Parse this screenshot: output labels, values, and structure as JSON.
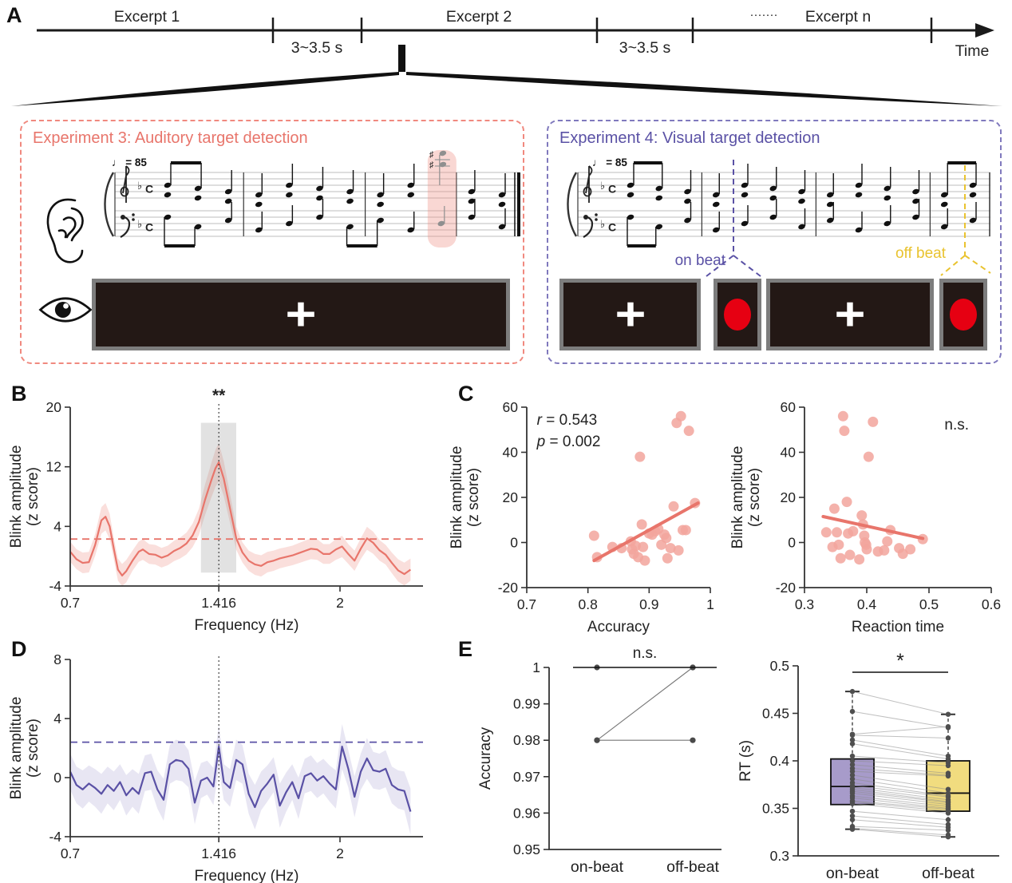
{
  "panels": {
    "a": "A",
    "b": "B",
    "c": "C",
    "d": "D",
    "e": "E"
  },
  "panelA": {
    "timeline": {
      "excerpt1": "Excerpt 1",
      "excerpt2": "Excerpt 2",
      "excerpt_n": "Excerpt n",
      "gap_label1": "3~3.5 s",
      "gap_label2": "3~3.5 s",
      "dots": "·······",
      "time_label": "Time"
    },
    "experiment3": {
      "title": "Experiment 3: Auditory target detection",
      "accent_color": "#e8756b",
      "tempo": "♩ = 85",
      "fixation_cross": "+",
      "target_highlight_color": "#f3c9c5"
    },
    "experiment4": {
      "title": "Experiment 4: Visual target detection",
      "accent_color": "#5a51a5",
      "tempo": "♩ = 85",
      "fixation_cross": "+",
      "on_beat_label": "on beat",
      "off_beat_label": "off beat",
      "on_beat_color": "#5a51a5",
      "off_beat_color": "#e9c32f",
      "target_color": "#e60012"
    }
  },
  "chart_data": [
    {
      "panel": "B",
      "type": "line",
      "xlabel": "Frequency (Hz)",
      "ylabel": [
        "Blink amplitude",
        "(z score)"
      ],
      "xlim": [
        0.7,
        2.4
      ],
      "ylim": [
        -4,
        20
      ],
      "xticks": [
        [
          0.7,
          "0.7"
        ],
        [
          1.416,
          "1.416"
        ],
        [
          2,
          "2"
        ]
      ],
      "yticks": [
        [
          -4,
          "-4"
        ],
        [
          4,
          "4"
        ],
        [
          12,
          "12"
        ],
        [
          20,
          "20"
        ]
      ],
      "line_color": "#e8756b",
      "band_color": "rgba(238,140,130,0.28)",
      "band": [
        1.3,
        0.1
      ],
      "threshold_dashed_y": 2.3,
      "highlight_band_x": [
        1.33,
        1.5
      ],
      "vline_x": 1.416,
      "significance": "**",
      "points": [
        [
          0.7,
          0.6
        ],
        [
          0.73,
          -0.4
        ],
        [
          0.76,
          -0.9
        ],
        [
          0.79,
          -0.8
        ],
        [
          0.82,
          1.5
        ],
        [
          0.85,
          4.8
        ],
        [
          0.87,
          5.3
        ],
        [
          0.89,
          4.0
        ],
        [
          0.91,
          1.0
        ],
        [
          0.93,
          -1.8
        ],
        [
          0.95,
          -2.6
        ],
        [
          0.97,
          -2.0
        ],
        [
          1.0,
          -0.6
        ],
        [
          1.03,
          0.6
        ],
        [
          1.05,
          0.9
        ],
        [
          1.08,
          0.3
        ],
        [
          1.11,
          0.2
        ],
        [
          1.14,
          -0.2
        ],
        [
          1.17,
          0.1
        ],
        [
          1.2,
          0.7
        ],
        [
          1.23,
          1.1
        ],
        [
          1.26,
          1.7
        ],
        [
          1.29,
          2.8
        ],
        [
          1.32,
          4.6
        ],
        [
          1.35,
          7.6
        ],
        [
          1.38,
          10.2
        ],
        [
          1.4,
          11.8
        ],
        [
          1.416,
          12.6
        ],
        [
          1.44,
          10.4
        ],
        [
          1.47,
          6.4
        ],
        [
          1.5,
          2.4
        ],
        [
          1.53,
          0.5
        ],
        [
          1.56,
          -0.6
        ],
        [
          1.59,
          -1.1
        ],
        [
          1.62,
          -1.3
        ],
        [
          1.65,
          -0.8
        ],
        [
          1.68,
          -0.6
        ],
        [
          1.71,
          -0.3
        ],
        [
          1.74,
          -0.1
        ],
        [
          1.77,
          0.1
        ],
        [
          1.8,
          0.4
        ],
        [
          1.83,
          0.7
        ],
        [
          1.86,
          1.0
        ],
        [
          1.89,
          0.9
        ],
        [
          1.92,
          0.3
        ],
        [
          1.95,
          0.3
        ],
        [
          1.98,
          0.9
        ],
        [
          2.01,
          1.3
        ],
        [
          2.04,
          0.3
        ],
        [
          2.07,
          -0.6
        ],
        [
          2.1,
          1.0
        ],
        [
          2.13,
          2.4
        ],
        [
          2.16,
          1.8
        ],
        [
          2.19,
          0.8
        ],
        [
          2.22,
          0.2
        ],
        [
          2.25,
          -0.9
        ],
        [
          2.28,
          -1.9
        ],
        [
          2.31,
          -2.4
        ],
        [
          2.34,
          -1.8
        ]
      ]
    },
    {
      "panel": "C-left",
      "type": "scatter",
      "xlabel": "Accuracy",
      "ylabel": [
        "Blink amplitude",
        "(z score)"
      ],
      "xlim": [
        0.7,
        1
      ],
      "ylim": [
        -20,
        60
      ],
      "xticks": [
        [
          0.7,
          "0.7"
        ],
        [
          0.8,
          "0.8"
        ],
        [
          0.9,
          "0.9"
        ],
        [
          1,
          "1"
        ]
      ],
      "yticks": [
        [
          -20,
          "-20"
        ],
        [
          0,
          "0"
        ],
        [
          20,
          "20"
        ],
        [
          40,
          "40"
        ],
        [
          60,
          "60"
        ]
      ],
      "marker_color": "#f2a49c",
      "stats": [
        "r = 0.543",
        "p = 0.002"
      ],
      "fit_line": [
        [
          0.81,
          -8
        ],
        [
          0.98,
          17.5
        ]
      ],
      "points": [
        [
          0.81,
          3
        ],
        [
          0.815,
          -6.5
        ],
        [
          0.84,
          -2
        ],
        [
          0.855,
          -2.5
        ],
        [
          0.87,
          0.5
        ],
        [
          0.872,
          -3
        ],
        [
          0.875,
          -5
        ],
        [
          0.878,
          -1.5
        ],
        [
          0.882,
          -6.5
        ],
        [
          0.885,
          38
        ],
        [
          0.888,
          8
        ],
        [
          0.89,
          -2
        ],
        [
          0.893,
          -8
        ],
        [
          0.9,
          4
        ],
        [
          0.905,
          3.5
        ],
        [
          0.91,
          5
        ],
        [
          0.915,
          6
        ],
        [
          0.92,
          -1
        ],
        [
          0.925,
          3.5
        ],
        [
          0.928,
          2
        ],
        [
          0.93,
          -7
        ],
        [
          0.935,
          -2.5
        ],
        [
          0.94,
          16
        ],
        [
          0.945,
          53
        ],
        [
          0.948,
          -3.5
        ],
        [
          0.952,
          56
        ],
        [
          0.955,
          5.5
        ],
        [
          0.96,
          5.5
        ],
        [
          0.965,
          49.5
        ],
        [
          0.975,
          17.5
        ]
      ]
    },
    {
      "panel": "C-right",
      "type": "scatter",
      "xlabel": "Reaction time",
      "ylabel": [
        "Blink amplitude",
        "(z score)"
      ],
      "xlim": [
        0.3,
        0.6
      ],
      "ylim": [
        -20,
        60
      ],
      "xticks": [
        [
          0.3,
          "0.3"
        ],
        [
          0.4,
          "0.4"
        ],
        [
          0.5,
          "0.5"
        ],
        [
          0.6,
          "0.6"
        ]
      ],
      "yticks": [
        [
          -20,
          "-20"
        ],
        [
          0,
          "0"
        ],
        [
          20,
          "20"
        ],
        [
          40,
          "40"
        ],
        [
          60,
          "60"
        ]
      ],
      "marker_color": "#f2a49c",
      "ns_label": "n.s.",
      "fit_line": [
        [
          0.33,
          11.5
        ],
        [
          0.49,
          1.8
        ]
      ],
      "points": [
        [
          0.335,
          4.5
        ],
        [
          0.345,
          -2
        ],
        [
          0.348,
          15
        ],
        [
          0.352,
          4.5
        ],
        [
          0.355,
          -1
        ],
        [
          0.358,
          -7
        ],
        [
          0.362,
          56
        ],
        [
          0.364,
          49.5
        ],
        [
          0.368,
          18
        ],
        [
          0.37,
          4
        ],
        [
          0.373,
          -5.5
        ],
        [
          0.378,
          5
        ],
        [
          0.388,
          -7.5
        ],
        [
          0.392,
          12
        ],
        [
          0.394,
          8
        ],
        [
          0.396,
          3
        ],
        [
          0.397,
          0
        ],
        [
          0.399,
          -1
        ],
        [
          0.4,
          -3
        ],
        [
          0.403,
          38
        ],
        [
          0.41,
          53.5
        ],
        [
          0.418,
          -4
        ],
        [
          0.428,
          -3.5
        ],
        [
          0.433,
          0.5
        ],
        [
          0.438,
          5.5
        ],
        [
          0.452,
          -2.5
        ],
        [
          0.458,
          -5
        ],
        [
          0.47,
          -3
        ],
        [
          0.49,
          1.5
        ]
      ]
    },
    {
      "panel": "D",
      "type": "line",
      "xlabel": "Frequency (Hz)",
      "ylabel": [
        "Blink amplitude",
        "(z score)"
      ],
      "xlim": [
        0.7,
        2.4
      ],
      "ylim": [
        -4,
        8
      ],
      "xticks": [
        [
          0.7,
          "0.7"
        ],
        [
          1.416,
          "1.416"
        ],
        [
          2,
          "2"
        ]
      ],
      "yticks": [
        [
          -4,
          "-4"
        ],
        [
          0,
          "0"
        ],
        [
          4,
          "4"
        ],
        [
          8,
          "8"
        ]
      ],
      "line_color": "#5a51a5",
      "band_color": "rgba(110,100,180,0.16)",
      "band": [
        1.15,
        0.18
      ],
      "threshold_dashed_y": 2.4,
      "vline_x": 1.416,
      "points": [
        [
          0.7,
          0.4
        ],
        [
          0.73,
          -0.5
        ],
        [
          0.76,
          -0.8
        ],
        [
          0.79,
          -0.4
        ],
        [
          0.82,
          -0.7
        ],
        [
          0.85,
          -1.1
        ],
        [
          0.88,
          -0.5
        ],
        [
          0.91,
          -0.9
        ],
        [
          0.94,
          -0.3
        ],
        [
          0.97,
          -1.2
        ],
        [
          1.0,
          -0.7
        ],
        [
          1.03,
          -1.1
        ],
        [
          1.06,
          0.3
        ],
        [
          1.09,
          0.4
        ],
        [
          1.12,
          -0.8
        ],
        [
          1.15,
          -1.5
        ],
        [
          1.18,
          0.9
        ],
        [
          1.21,
          1.2
        ],
        [
          1.24,
          1.1
        ],
        [
          1.27,
          0.6
        ],
        [
          1.3,
          -1.7
        ],
        [
          1.33,
          -0.2
        ],
        [
          1.36,
          0.0
        ],
        [
          1.39,
          -0.6
        ],
        [
          1.416,
          2.1
        ],
        [
          1.44,
          -0.3
        ],
        [
          1.47,
          -0.7
        ],
        [
          1.5,
          1.2
        ],
        [
          1.53,
          0.9
        ],
        [
          1.56,
          -1.1
        ],
        [
          1.59,
          -2.0
        ],
        [
          1.62,
          -0.9
        ],
        [
          1.65,
          -0.4
        ],
        [
          1.68,
          0.2
        ],
        [
          1.71,
          -1.9
        ],
        [
          1.74,
          -1.0
        ],
        [
          1.77,
          -0.3
        ],
        [
          1.8,
          -1.4
        ],
        [
          1.83,
          0.1
        ],
        [
          1.86,
          0.3
        ],
        [
          1.89,
          -0.2
        ],
        [
          1.92,
          0.1
        ],
        [
          1.95,
          -0.4
        ],
        [
          1.98,
          -0.8
        ],
        [
          2.01,
          2.1
        ],
        [
          2.04,
          0.6
        ],
        [
          2.07,
          -1.3
        ],
        [
          2.1,
          0.4
        ],
        [
          2.13,
          1.3
        ],
        [
          2.16,
          0.5
        ],
        [
          2.19,
          0.4
        ],
        [
          2.22,
          0.6
        ],
        [
          2.25,
          -0.5
        ],
        [
          2.28,
          -0.8
        ],
        [
          2.31,
          -0.9
        ],
        [
          2.34,
          -2.3
        ]
      ]
    },
    {
      "panel": "E-left",
      "type": "paired-line",
      "ylabel": "Accuracy",
      "categories": [
        "on-beat",
        "off-beat"
      ],
      "ylim": [
        0.95,
        1
      ],
      "yticks": [
        [
          0.95,
          "0.95"
        ],
        [
          0.96,
          "0.96"
        ],
        [
          0.97,
          "0.97"
        ],
        [
          0.98,
          "0.98"
        ],
        [
          0.99,
          "0.99"
        ],
        [
          1,
          "1"
        ]
      ],
      "significance": "n.s.",
      "pairs": [
        [
          1,
          1
        ],
        [
          0.98,
          1
        ],
        [
          0.98,
          0.98
        ]
      ]
    },
    {
      "panel": "E-right",
      "type": "boxplot",
      "ylabel": "RT (s)",
      "categories": [
        "on-beat",
        "off-beat"
      ],
      "ylim": [
        0.3,
        0.5
      ],
      "yticks": [
        [
          0.3,
          "0.3"
        ],
        [
          0.35,
          "0.35"
        ],
        [
          0.4,
          "0.4"
        ],
        [
          0.45,
          "0.45"
        ],
        [
          0.5,
          "0.5"
        ]
      ],
      "significance": "*",
      "boxes": [
        {
          "label": "on-beat",
          "color": "#a79bca",
          "whisker_low": 0.328,
          "q1": 0.354,
          "median": 0.373,
          "q3": 0.402,
          "whisker_high": 0.473
        },
        {
          "label": "off-beat",
          "color": "#f1dc7f",
          "whisker_low": 0.32,
          "q1": 0.347,
          "median": 0.366,
          "q3": 0.4,
          "whisker_high": 0.449
        }
      ],
      "pairs": [
        [
          0.473,
          0.449
        ],
        [
          0.452,
          0.435
        ],
        [
          0.428,
          0.436
        ],
        [
          0.427,
          0.424
        ],
        [
          0.422,
          0.405
        ],
        [
          0.418,
          0.402
        ],
        [
          0.405,
          0.398
        ],
        [
          0.4,
          0.395
        ],
        [
          0.396,
          0.387
        ],
        [
          0.392,
          0.385
        ],
        [
          0.389,
          0.384
        ],
        [
          0.385,
          0.37
        ],
        [
          0.381,
          0.366
        ],
        [
          0.377,
          0.363
        ],
        [
          0.374,
          0.362
        ],
        [
          0.372,
          0.359
        ],
        [
          0.37,
          0.357
        ],
        [
          0.368,
          0.356
        ],
        [
          0.366,
          0.354
        ],
        [
          0.363,
          0.352
        ],
        [
          0.361,
          0.35
        ],
        [
          0.358,
          0.349
        ],
        [
          0.357,
          0.347
        ],
        [
          0.355,
          0.345
        ],
        [
          0.347,
          0.338
        ],
        [
          0.342,
          0.333
        ],
        [
          0.338,
          0.33
        ],
        [
          0.331,
          0.327
        ],
        [
          0.329,
          0.322
        ],
        [
          0.328,
          0.32
        ]
      ]
    }
  ]
}
